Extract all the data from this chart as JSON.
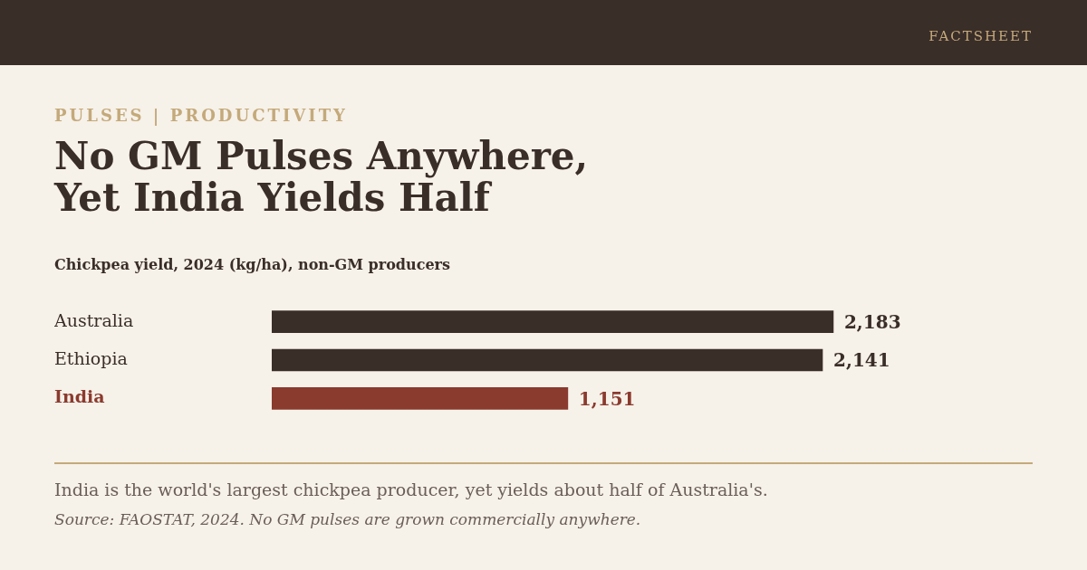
{
  "chart_data": {
    "type": "bar",
    "orientation": "horizontal",
    "title": "No GM Pulses Anywhere, Yet India Yields Half",
    "subtitle": "Chickpea yield, 2024 (kg/ha), non-GM producers",
    "categories": [
      "Australia",
      "Ethiopia",
      "India"
    ],
    "values": [
      2183,
      2141,
      1151
    ],
    "colors": [
      "#3a2e29",
      "#3a2e29",
      "#8b3a2e"
    ],
    "value_labels": [
      "2,183",
      "2,141",
      "1,151"
    ],
    "legend": false,
    "annotations": [
      "FACTSHEET",
      "PULSES | PRODUCTIVITY",
      "India is the world's largest chickpea producer, yet yields about half of Australia's.",
      "Source: FAOSTAT, 2024. No GM pulses are grown commercially anywhere."
    ]
  }
}
